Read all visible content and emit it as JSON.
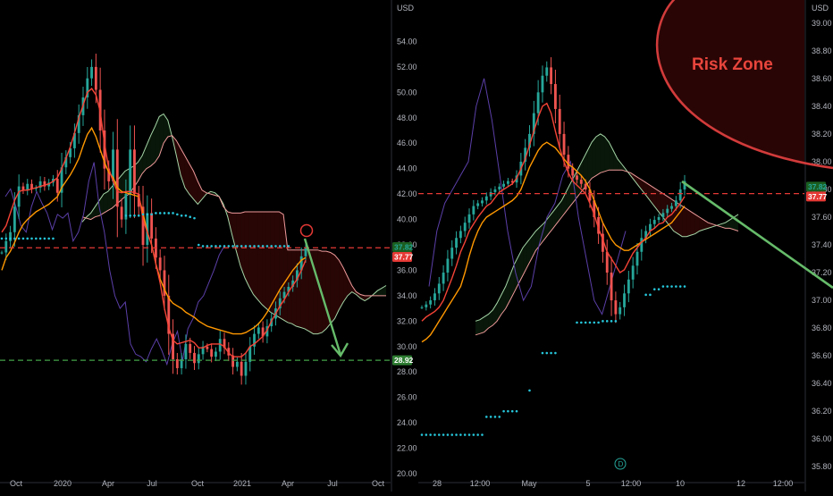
{
  "chart_data": [
    {
      "type": "line",
      "panel": "left",
      "currency": "USD",
      "yticks": [
        "54.00",
        "52.00",
        "50.00",
        "48.00",
        "46.00",
        "44.00",
        "42.00",
        "40.00",
        "38.00",
        "36.00",
        "34.00",
        "32.00",
        "30.00",
        "28.00",
        "26.00",
        "24.00",
        "22.00",
        "20.00"
      ],
      "ylim": [
        20,
        56
      ],
      "xticks": [
        "Oct",
        "2020",
        "Apr",
        "Jul",
        "Oct",
        "2021",
        "Apr",
        "Jul",
        "Oct"
      ],
      "price_labels": [
        {
          "text": "37.82",
          "value": 37.82,
          "color": "#26a69a",
          "bg": "#1b5e20"
        },
        {
          "text": "37.77",
          "value": 37.77,
          "color": "#ffffff",
          "bg": "#e53935"
        },
        {
          "text": "28.92",
          "value": 28.92,
          "color": "#ffffff",
          "bg": "#2e7d32"
        }
      ],
      "hlines": [
        {
          "value": 37.77,
          "color": "#e53935",
          "style": "dashed"
        },
        {
          "value": 28.92,
          "color": "#43a047",
          "style": "dashed"
        }
      ],
      "close": [
        37.4,
        38.3,
        39.0,
        41.0,
        42.6,
        42.3,
        42.8,
        42.4,
        42.5,
        43.0,
        42.6,
        42.9,
        43.2,
        42.1,
        44.1,
        44.9,
        45.6,
        46.8,
        48.2,
        49.6,
        51.1,
        52.0,
        50.2,
        47.0,
        44.0,
        43.0,
        45.5,
        41.0,
        40.0,
        42.0,
        45.5,
        42.0,
        41.0,
        38.0,
        40.5,
        38.5,
        37.0,
        36.0,
        34.0,
        31.0,
        29.0,
        28.3,
        29.0,
        30.2,
        29.5,
        28.7,
        29.4,
        30.0,
        29.8,
        29.2,
        29.6,
        30.6,
        29.9,
        29.3,
        28.4,
        28.8,
        27.7,
        28.8,
        30.0,
        31.0,
        31.5,
        30.8,
        31.6,
        32.2,
        33.0,
        33.8,
        34.3,
        34.7,
        35.2,
        36.0,
        37.1,
        37.8
      ],
      "tenkan": [
        39,
        39.5,
        40.5,
        41.5,
        42.2,
        42.3,
        42.3,
        42.4,
        42.5,
        42.6,
        42.7,
        42.8,
        43,
        43.3,
        44,
        44.8,
        45.7,
        46.8,
        48,
        49,
        50,
        50.3,
        49.8,
        48.5,
        46,
        44,
        43,
        42.2,
        42.1,
        42.2,
        42.2,
        42.1,
        42,
        40,
        39,
        38,
        36.5,
        35,
        33,
        31.5,
        30.5,
        30.2,
        30.3,
        30.4,
        30.5,
        30.3,
        29.9,
        29.9,
        30.1,
        30.2,
        30.2,
        30.2,
        30.0,
        29.5,
        29.2,
        29.2,
        29.2,
        29.5,
        30,
        30.2,
        30.5,
        30.8,
        31.3,
        32,
        32.6,
        33.2,
        33.7,
        34.3,
        34.8,
        35.3,
        36,
        36.8
      ],
      "kijun": [
        36,
        37,
        37.5,
        38.2,
        39,
        39.6,
        40,
        40.3,
        40.6,
        40.8,
        41,
        41.2,
        41.5,
        41.8,
        42.5,
        43,
        43.5,
        44.1,
        44.8,
        45.8,
        46.7,
        47.2,
        46.5,
        45.5,
        44.5,
        43.7,
        43.3,
        42.5,
        42.2,
        42.1,
        42.0,
        41.9,
        41.8,
        40.5,
        39,
        38,
        36.5,
        35.3,
        34.5,
        33.8,
        33.4,
        33.2,
        33.0,
        32.7,
        32.5,
        32.3,
        32.0,
        31.8,
        31.6,
        31.5,
        31.4,
        31.3,
        31.2,
        31.1,
        31.0,
        31.0,
        31.0,
        31.1,
        31.3,
        31.5,
        31.8,
        32.2,
        32.7,
        33.3,
        33.9,
        34.5,
        35.0,
        35.5,
        36.0,
        36.4,
        36.8,
        37.0
      ],
      "span_a": [
        39.8,
        40.2,
        40.5,
        41,
        41.5,
        42,
        42.2,
        42.6,
        43,
        43.4,
        43.8,
        44,
        44.2,
        44.5,
        45,
        45.8,
        46.6,
        47.3,
        48.1,
        48.3,
        47.8,
        46.5,
        45,
        43.5,
        42.5,
        42,
        41.6,
        41.2,
        41.6,
        42.0,
        42.2,
        42.1,
        41.8,
        41.2,
        40.2,
        38.8,
        37.5,
        36.3,
        35.4,
        34.7,
        34.1,
        33.7,
        33.3,
        33.0,
        32.7,
        32.5,
        32.3,
        32.1,
        31.9,
        31.8,
        31.6,
        31.5,
        31.4,
        31.2,
        31.0,
        31.0,
        31.1,
        31.4,
        31.8,
        32.2,
        32.9,
        33.5,
        34.0,
        34.3,
        34.1,
        33.8,
        33.6,
        33.8,
        34.1,
        34.4,
        34.6,
        34.8
      ],
      "span_b": [
        40.2,
        40.1,
        40.0,
        40.2,
        40.3,
        40.5,
        40.7,
        40.9,
        41.2,
        41.5,
        41.8,
        42.0,
        42.5,
        43.0,
        43.6,
        44.0,
        44.2,
        44.5,
        45.0,
        46.0,
        46.5,
        46.6,
        46.2,
        45.6,
        45.0,
        44.4,
        43.8,
        43.0,
        42.3,
        42.1,
        42.0,
        41.9,
        41.8,
        41.0,
        40.6,
        40.5,
        40.5,
        40.5,
        40.6,
        40.6,
        40.6,
        40.6,
        40.6,
        40.6,
        40.6,
        40.6,
        40.6,
        40.4,
        37.6,
        37.6,
        37.6,
        37.6,
        37.6,
        37.6,
        37.6,
        37.6,
        37.5,
        37.5,
        37.4,
        37.2,
        36.8,
        36.2,
        35.5,
        34.8,
        34.3,
        34.1,
        34.0,
        34.0,
        34.0,
        34.0,
        34.0,
        34.0
      ],
      "chikou": [
        41.8,
        42.4,
        41.0,
        39.5,
        39.0,
        41.0,
        42.2,
        41.3,
        40.5,
        39.2,
        40.4,
        40.1,
        40.5,
        38.3,
        39.0,
        40.4,
        43.0,
        44.5,
        41.0,
        39.0,
        36.0,
        34.0,
        33.0,
        33.5,
        30.2,
        29.4,
        29.2,
        28.8,
        29.8,
        30.6,
        29.7,
        28.6,
        30.2,
        31.2,
        28.9,
        31.4,
        32.2,
        33.5,
        34.0,
        35.0,
        36.0,
        37.2,
        37.9
      ],
      "psar": [
        38.5,
        38.5,
        38.5,
        38.5,
        38.5,
        38.5,
        38.5,
        38.5,
        38.5,
        38.5,
        38.5,
        38.5,
        38.5,
        null,
        null,
        null,
        null,
        null,
        null,
        null,
        null,
        null,
        null,
        null,
        null,
        null,
        null,
        null,
        null,
        40.3,
        40.3,
        40.3,
        40.3,
        40.4,
        40.4,
        40.4,
        40.5,
        40.5,
        40.5,
        40.5,
        40.5,
        40.4,
        40.3,
        40.3,
        40.2,
        40.1,
        38.0,
        37.9,
        37.9,
        37.9,
        37.9,
        37.9,
        37.9,
        37.9,
        37.9,
        37.9,
        37.9,
        37.9,
        37.9,
        37.9,
        37.9,
        37.9,
        37.9,
        37.9,
        37.9,
        37.9,
        37.9,
        37.9,
        null,
        null,
        null,
        null
      ]
    },
    {
      "type": "line",
      "panel": "right",
      "currency": "USD",
      "yticks": [
        "39.00",
        "38.80",
        "38.60",
        "38.40",
        "38.20",
        "38.00",
        "37.80",
        "37.60",
        "37.40",
        "37.20",
        "37.00",
        "36.80",
        "36.60",
        "36.40",
        "36.20",
        "36.00",
        "35.80"
      ],
      "ylim": [
        35.75,
        39.05
      ],
      "xticks": [
        "28",
        "12:00",
        "May",
        "5",
        "12:00",
        "10",
        "12",
        "12:00"
      ],
      "annotation": "Risk Zone",
      "price_labels": [
        {
          "text": "37.82",
          "value": 37.82,
          "color": "#26a69a",
          "bg": "#1b5e20"
        },
        {
          "text": "37.77",
          "value": 37.77,
          "color": "#ffffff",
          "bg": "#e53935"
        }
      ],
      "hlines": [
        {
          "value": 37.77,
          "color": "#e53935",
          "style": "dashed"
        }
      ],
      "close": [
        36.95,
        36.97,
        37.0,
        37.05,
        37.12,
        37.2,
        37.3,
        37.38,
        37.45,
        37.5,
        37.56,
        37.62,
        37.68,
        37.7,
        37.72,
        37.75,
        37.78,
        37.8,
        37.82,
        37.84,
        37.86,
        37.85,
        37.9,
        38.0,
        38.1,
        38.2,
        38.35,
        38.5,
        38.62,
        38.68,
        38.56,
        38.38,
        38.2,
        38.05,
        37.95,
        37.9,
        37.87,
        37.84,
        37.8,
        37.72,
        37.6,
        37.48,
        37.35,
        37.2,
        37.0,
        36.9,
        36.95,
        37.05,
        37.15,
        37.25,
        37.35,
        37.45,
        37.5,
        37.55,
        37.58,
        37.6,
        37.63,
        37.66,
        37.68,
        37.72,
        37.8,
        37.86
      ],
      "tenkan": [
        36.85,
        36.88,
        36.9,
        36.92,
        36.95,
        37.0,
        37.08,
        37.16,
        37.25,
        37.35,
        37.42,
        37.5,
        37.55,
        37.6,
        37.64,
        37.68,
        37.7,
        37.74,
        37.78,
        37.8,
        37.82,
        37.84,
        37.88,
        37.95,
        38.02,
        38.12,
        38.22,
        38.32,
        38.4,
        38.42,
        38.35,
        38.22,
        38.1,
        38.0,
        37.92,
        37.86,
        37.83,
        37.8,
        37.77,
        37.7,
        37.62,
        37.52,
        37.44,
        37.35,
        37.3,
        37.25,
        37.2,
        37.22,
        37.28,
        37.34,
        37.38,
        37.42,
        37.45,
        37.5,
        37.52,
        37.55,
        37.56,
        37.6,
        37.62,
        37.66,
        37.7,
        37.75
      ],
      "kijun": [
        36.7,
        36.72,
        36.75,
        36.8,
        36.85,
        36.9,
        36.95,
        37.0,
        37.05,
        37.1,
        37.2,
        37.32,
        37.42,
        37.5,
        37.56,
        37.6,
        37.62,
        37.64,
        37.66,
        37.68,
        37.7,
        37.72,
        37.75,
        37.8,
        37.88,
        37.96,
        38.02,
        38.08,
        38.12,
        38.14,
        38.12,
        38.1,
        38.06,
        38.02,
        37.98,
        37.96,
        37.93,
        37.9,
        37.86,
        37.8,
        37.72,
        37.64,
        37.56,
        37.5,
        37.44,
        37.4,
        37.38,
        37.36,
        37.36,
        37.38,
        37.4,
        37.42,
        37.44,
        37.46,
        37.48,
        37.5,
        37.52,
        37.54,
        37.56,
        37.6,
        37.64,
        37.68
      ],
      "span_a": [
        36.85,
        36.86,
        36.88,
        36.9,
        36.93,
        36.98,
        37.04,
        37.1,
        37.18,
        37.26,
        37.32,
        37.38,
        37.42,
        37.46,
        37.5,
        37.53,
        37.56,
        37.6,
        37.64,
        37.68,
        37.72,
        37.78,
        37.84,
        37.9,
        37.96,
        38.02,
        38.08,
        38.14,
        38.18,
        38.2,
        38.18,
        38.14,
        38.08,
        38.02,
        37.98,
        37.94,
        37.9,
        37.86,
        37.82,
        37.78,
        37.74,
        37.7,
        37.66,
        37.62,
        37.58,
        37.54,
        37.5,
        37.48,
        37.46,
        37.46,
        37.47,
        37.48,
        37.5,
        37.51,
        37.52,
        37.53,
        37.54,
        37.55,
        37.56,
        37.58,
        37.6,
        37.62
      ],
      "span_b": [
        36.75,
        36.76,
        36.77,
        36.8,
        36.82,
        36.85,
        36.9,
        36.94,
        37.0,
        37.06,
        37.12,
        37.18,
        37.24,
        37.3,
        37.36,
        37.4,
        37.44,
        37.48,
        37.52,
        37.56,
        37.6,
        37.64,
        37.68,
        37.72,
        37.76,
        37.8,
        37.84,
        37.88,
        37.9,
        37.92,
        37.93,
        37.94,
        37.94,
        37.94,
        37.94,
        37.93,
        37.92,
        37.9,
        37.88,
        37.86,
        37.84,
        37.82,
        37.8,
        37.78,
        37.76,
        37.74,
        37.72,
        37.7,
        37.68,
        37.66,
        37.64,
        37.62,
        37.6,
        37.58,
        37.56,
        37.55,
        37.54,
        37.53,
        37.52,
        37.52,
        37.51,
        37.5
      ],
      "chikou": [
        37.1,
        37.5,
        37.7,
        37.8,
        37.9,
        38.0,
        38.4,
        38.6,
        38.3,
        37.9,
        37.5,
        37.2,
        37.0,
        37.1,
        37.4,
        37.6,
        37.7,
        37.9,
        38.0,
        37.6,
        37.3,
        37.0,
        36.9,
        37.1,
        37.3,
        37.5
      ],
      "psar": [
        36.03,
        36.03,
        36.03,
        36.03,
        36.03,
        36.03,
        36.03,
        36.03,
        36.03,
        36.03,
        36.03,
        36.03,
        36.03,
        36.03,
        36.03,
        36.16,
        36.16,
        36.16,
        36.16,
        36.2,
        36.2,
        36.2,
        36.2,
        null,
        null,
        36.35,
        null,
        null,
        36.62,
        36.62,
        36.62,
        36.62,
        null,
        null,
        null,
        null,
        36.84,
        36.84,
        36.84,
        36.84,
        36.84,
        36.84,
        36.85,
        36.85,
        36.85,
        36.85,
        null,
        null,
        null,
        null,
        null,
        null,
        37.04,
        37.04,
        37.08,
        37.08,
        37.1,
        37.1,
        37.1,
        37.1,
        37.1,
        37.1
      ]
    }
  ]
}
